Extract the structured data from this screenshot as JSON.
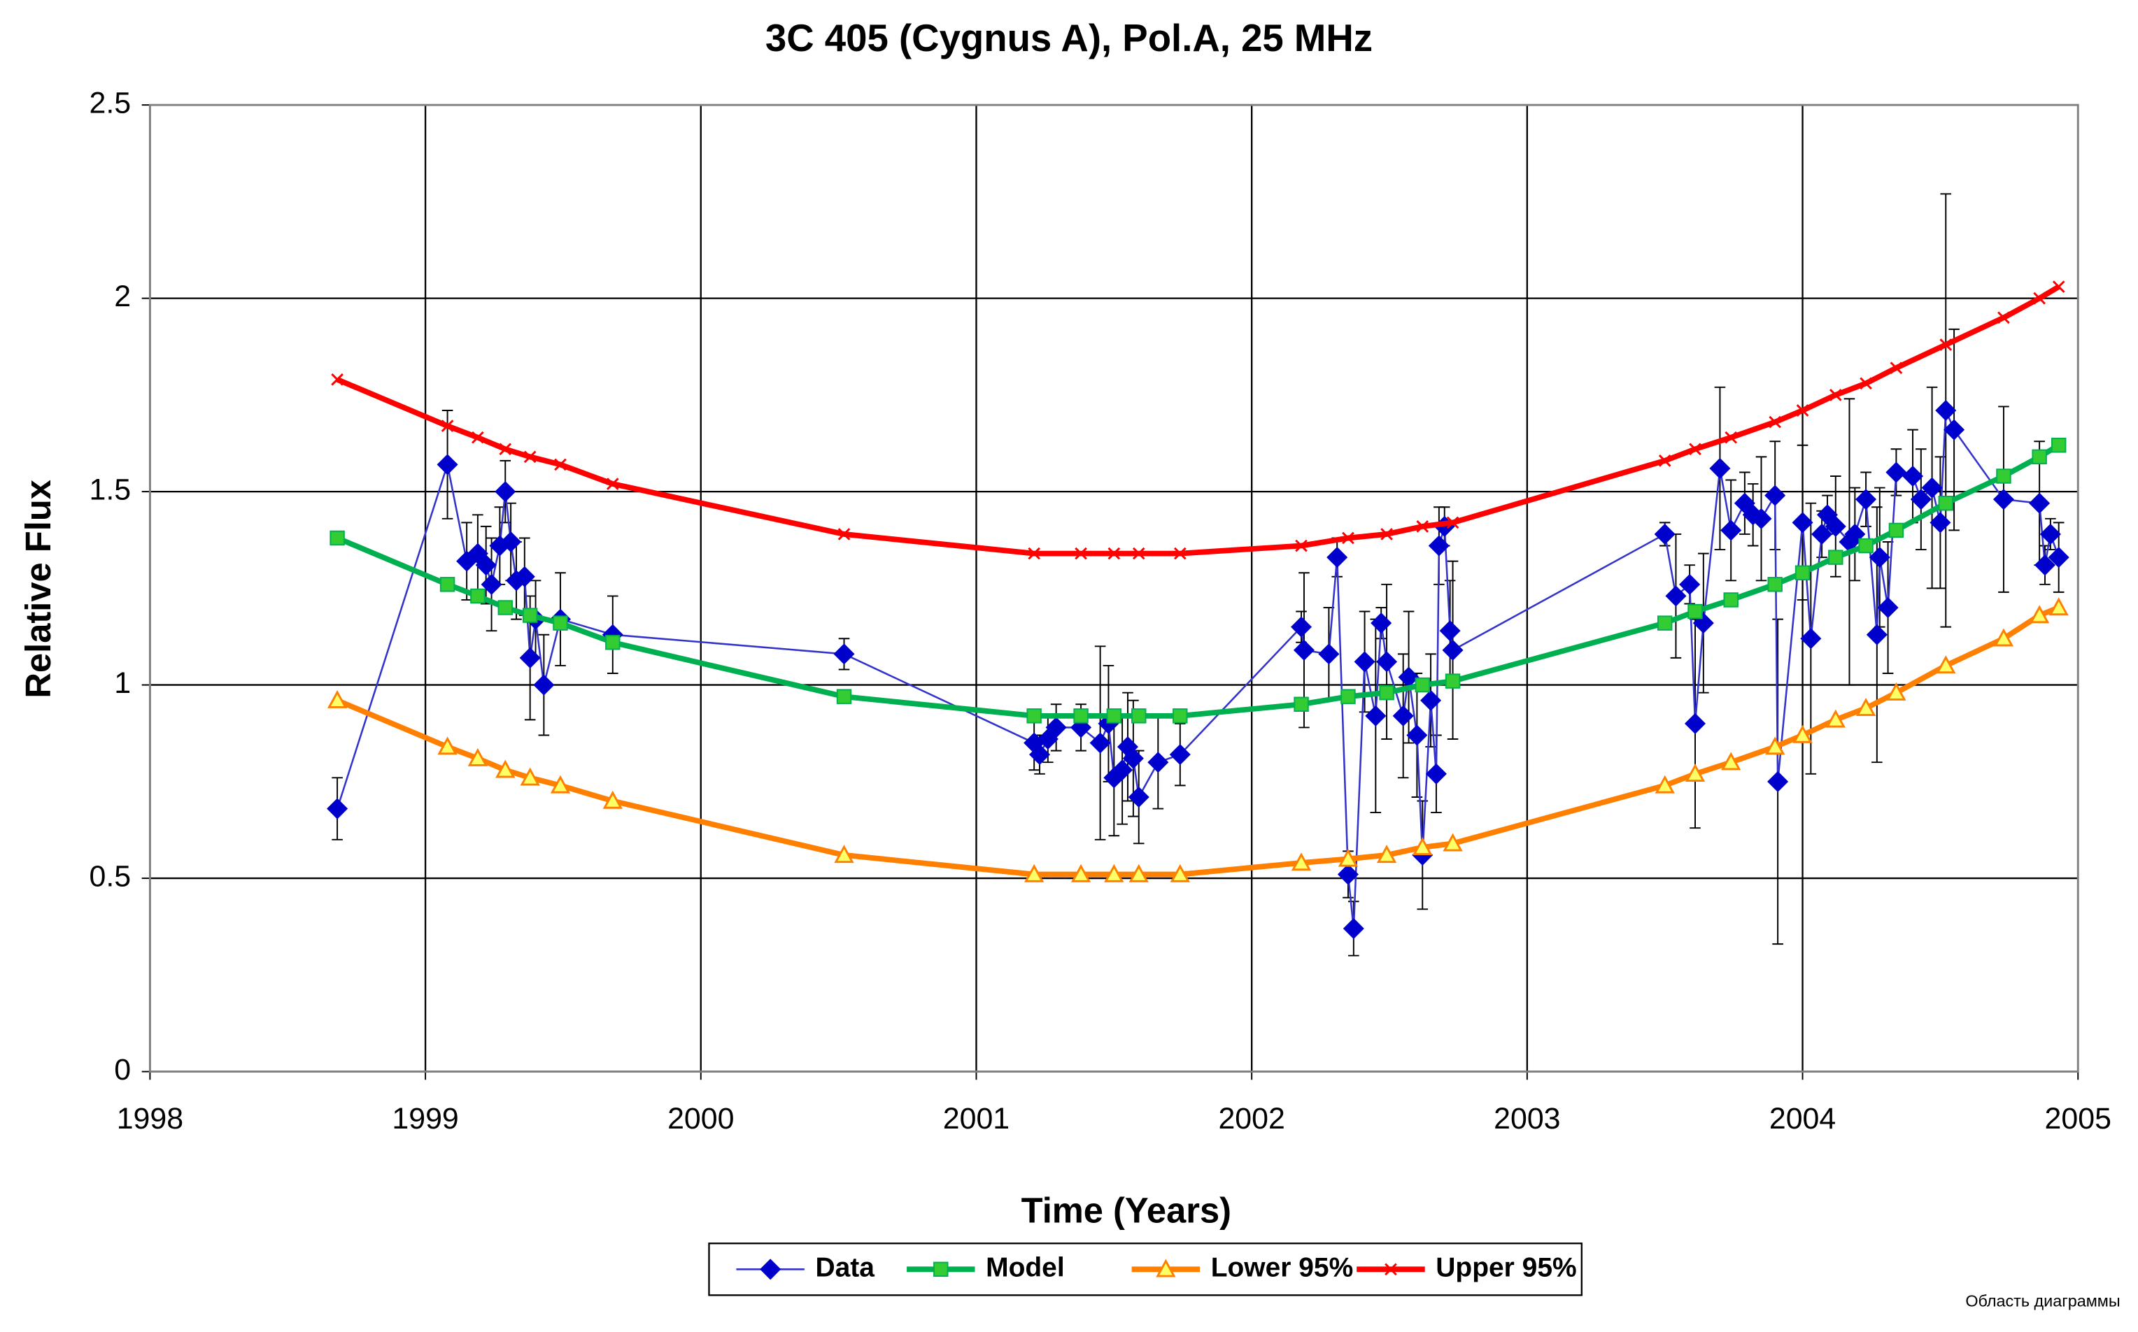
{
  "chart_data": {
    "type": "line",
    "title": "3C 405 (Cygnus A), Pol.A, 25 MHz",
    "x_label": "Time (Years)",
    "y_label": "Relative Flux",
    "annotation": "Область диаграммы",
    "xlim": [
      1998,
      2005
    ],
    "xticks": [
      1998,
      1999,
      2000,
      2001,
      2002,
      2003,
      2004,
      2005
    ],
    "ylim": [
      0,
      2.5
    ],
    "yticks": [
      0,
      0.5,
      1,
      1.5,
      2,
      2.5
    ],
    "grid": true,
    "legend": "bottom",
    "series": [
      {
        "name": "Data",
        "color": "#0000cc",
        "marker": "diamond",
        "x": [
          1998.68,
          1999.08,
          1999.15,
          1999.19,
          1999.22,
          1999.24,
          1999.27,
          1999.29,
          1999.31,
          1999.33,
          1999.36,
          1999.38,
          1999.4,
          1999.43,
          1999.49,
          1999.68,
          2000.52,
          2001.21,
          2001.23,
          2001.26,
          2001.29,
          2001.38,
          2001.45,
          2001.48,
          2001.5,
          2001.53,
          2001.55,
          2001.57,
          2001.59,
          2001.66,
          2001.74,
          2002.18,
          2002.19,
          2002.28,
          2002.31,
          2002.35,
          2002.37,
          2002.41,
          2002.45,
          2002.47,
          2002.49,
          2002.55,
          2002.57,
          2002.6,
          2002.62,
          2002.65,
          2002.67,
          2002.68,
          2002.7,
          2002.72,
          2002.73,
          2003.5,
          2003.54,
          2003.59,
          2003.61,
          2003.64,
          2003.7,
          2003.74,
          2003.79,
          2003.82,
          2003.85,
          2003.9,
          2003.91,
          2004.0,
          2004.03,
          2004.07,
          2004.09,
          2004.12,
          2004.17,
          2004.19,
          2004.23,
          2004.27,
          2004.28,
          2004.31,
          2004.34,
          2004.4,
          2004.43,
          2004.47,
          2004.5,
          2004.52,
          2004.55,
          2004.73,
          2004.86,
          2004.88,
          2004.9,
          2004.93
        ],
        "values": [
          0.68,
          1.57,
          1.32,
          1.34,
          1.31,
          1.26,
          1.36,
          1.5,
          1.37,
          1.27,
          1.28,
          1.07,
          1.17,
          1.0,
          1.17,
          1.13,
          1.08,
          0.85,
          0.82,
          0.86,
          0.89,
          0.89,
          0.85,
          0.9,
          0.76,
          0.78,
          0.84,
          0.81,
          0.71,
          0.8,
          0.82,
          1.15,
          1.09,
          1.08,
          1.33,
          0.51,
          0.37,
          1.06,
          0.92,
          1.16,
          1.06,
          0.92,
          1.02,
          0.87,
          0.56,
          0.96,
          0.77,
          1.36,
          1.41,
          1.14,
          1.09,
          1.39,
          1.23,
          1.26,
          0.9,
          1.16,
          1.56,
          1.4,
          1.47,
          1.44,
          1.43,
          1.49,
          0.75,
          1.42,
          1.12,
          1.39,
          1.44,
          1.41,
          1.37,
          1.39,
          1.48,
          1.13,
          1.33,
          1.2,
          1.55,
          1.54,
          1.48,
          1.51,
          1.42,
          1.71,
          1.66,
          1.48,
          1.47,
          1.31,
          1.39,
          1.33
        ],
        "errors": [
          0.08,
          0.14,
          0.1,
          0.1,
          0.1,
          0.12,
          0.1,
          0.08,
          0.1,
          0.1,
          0.1,
          0.16,
          0.1,
          0.13,
          0.12,
          0.1,
          0.04,
          0.07,
          0.05,
          0.06,
          0.06,
          0.06,
          0.25,
          0.15,
          0.15,
          0.14,
          0.14,
          0.15,
          0.12,
          0.12,
          0.08,
          0.04,
          0.2,
          0.12,
          0.05,
          0.06,
          0.07,
          0.13,
          0.25,
          0.04,
          0.2,
          0.16,
          0.17,
          0.16,
          0.14,
          0.12,
          0.1,
          0.1,
          0.05,
          0.13,
          0.23,
          0.03,
          0.16,
          0.05,
          0.27,
          0.18,
          0.21,
          0.13,
          0.08,
          0.08,
          0.16,
          0.14,
          0.42,
          0.2,
          0.35,
          0.06,
          0.05,
          0.13,
          0.37,
          0.12,
          0.07,
          0.33,
          0.18,
          0.17,
          0.06,
          0.12,
          0.13,
          0.26,
          0.17,
          0.56,
          0.26,
          0.24,
          0.16,
          0.05,
          0.04,
          0.09
        ]
      },
      {
        "name": "Model",
        "color": "#00b050",
        "marker": "square",
        "x": [
          1998.68,
          1999.08,
          1999.19,
          1999.29,
          1999.38,
          1999.49,
          1999.68,
          2000.52,
          2001.21,
          2001.38,
          2001.5,
          2001.59,
          2001.74,
          2002.18,
          2002.35,
          2002.49,
          2002.62,
          2002.73,
          2003.5,
          2003.61,
          2003.74,
          2003.9,
          2004.0,
          2004.12,
          2004.23,
          2004.34,
          2004.52,
          2004.73,
          2004.86,
          2004.93
        ],
        "values": [
          1.38,
          1.26,
          1.23,
          1.2,
          1.18,
          1.16,
          1.11,
          0.97,
          0.92,
          0.92,
          0.92,
          0.92,
          0.92,
          0.95,
          0.97,
          0.98,
          1.0,
          1.01,
          1.16,
          1.19,
          1.22,
          1.26,
          1.29,
          1.33,
          1.36,
          1.4,
          1.47,
          1.54,
          1.59,
          1.62
        ]
      },
      {
        "name": "Lower 95%",
        "color": "#ff7f00",
        "marker": "triangle",
        "x": [
          1998.68,
          1999.08,
          1999.19,
          1999.29,
          1999.38,
          1999.49,
          1999.68,
          2000.52,
          2001.21,
          2001.38,
          2001.5,
          2001.59,
          2001.74,
          2002.18,
          2002.35,
          2002.49,
          2002.62,
          2002.73,
          2003.5,
          2003.61,
          2003.74,
          2003.9,
          2004.0,
          2004.12,
          2004.23,
          2004.34,
          2004.52,
          2004.73,
          2004.86,
          2004.93
        ],
        "values": [
          0.96,
          0.84,
          0.81,
          0.78,
          0.76,
          0.74,
          0.7,
          0.56,
          0.51,
          0.51,
          0.51,
          0.51,
          0.51,
          0.54,
          0.55,
          0.56,
          0.58,
          0.59,
          0.74,
          0.77,
          0.8,
          0.84,
          0.87,
          0.91,
          0.94,
          0.98,
          1.05,
          1.12,
          1.18,
          1.2
        ]
      },
      {
        "name": "Upper 95%",
        "color": "#ff0000",
        "marker": "cross",
        "x": [
          1998.68,
          1999.08,
          1999.19,
          1999.29,
          1999.38,
          1999.49,
          1999.68,
          2000.52,
          2001.21,
          2001.38,
          2001.5,
          2001.59,
          2001.74,
          2002.18,
          2002.35,
          2002.49,
          2002.62,
          2002.73,
          2003.5,
          2003.61,
          2003.74,
          2003.9,
          2004.0,
          2004.12,
          2004.23,
          2004.34,
          2004.52,
          2004.73,
          2004.86,
          2004.93
        ],
        "values": [
          1.79,
          1.67,
          1.64,
          1.61,
          1.59,
          1.57,
          1.52,
          1.39,
          1.34,
          1.34,
          1.34,
          1.34,
          1.34,
          1.36,
          1.38,
          1.39,
          1.41,
          1.42,
          1.58,
          1.61,
          1.64,
          1.68,
          1.71,
          1.75,
          1.78,
          1.82,
          1.88,
          1.95,
          2.0,
          2.03
        ]
      }
    ]
  }
}
